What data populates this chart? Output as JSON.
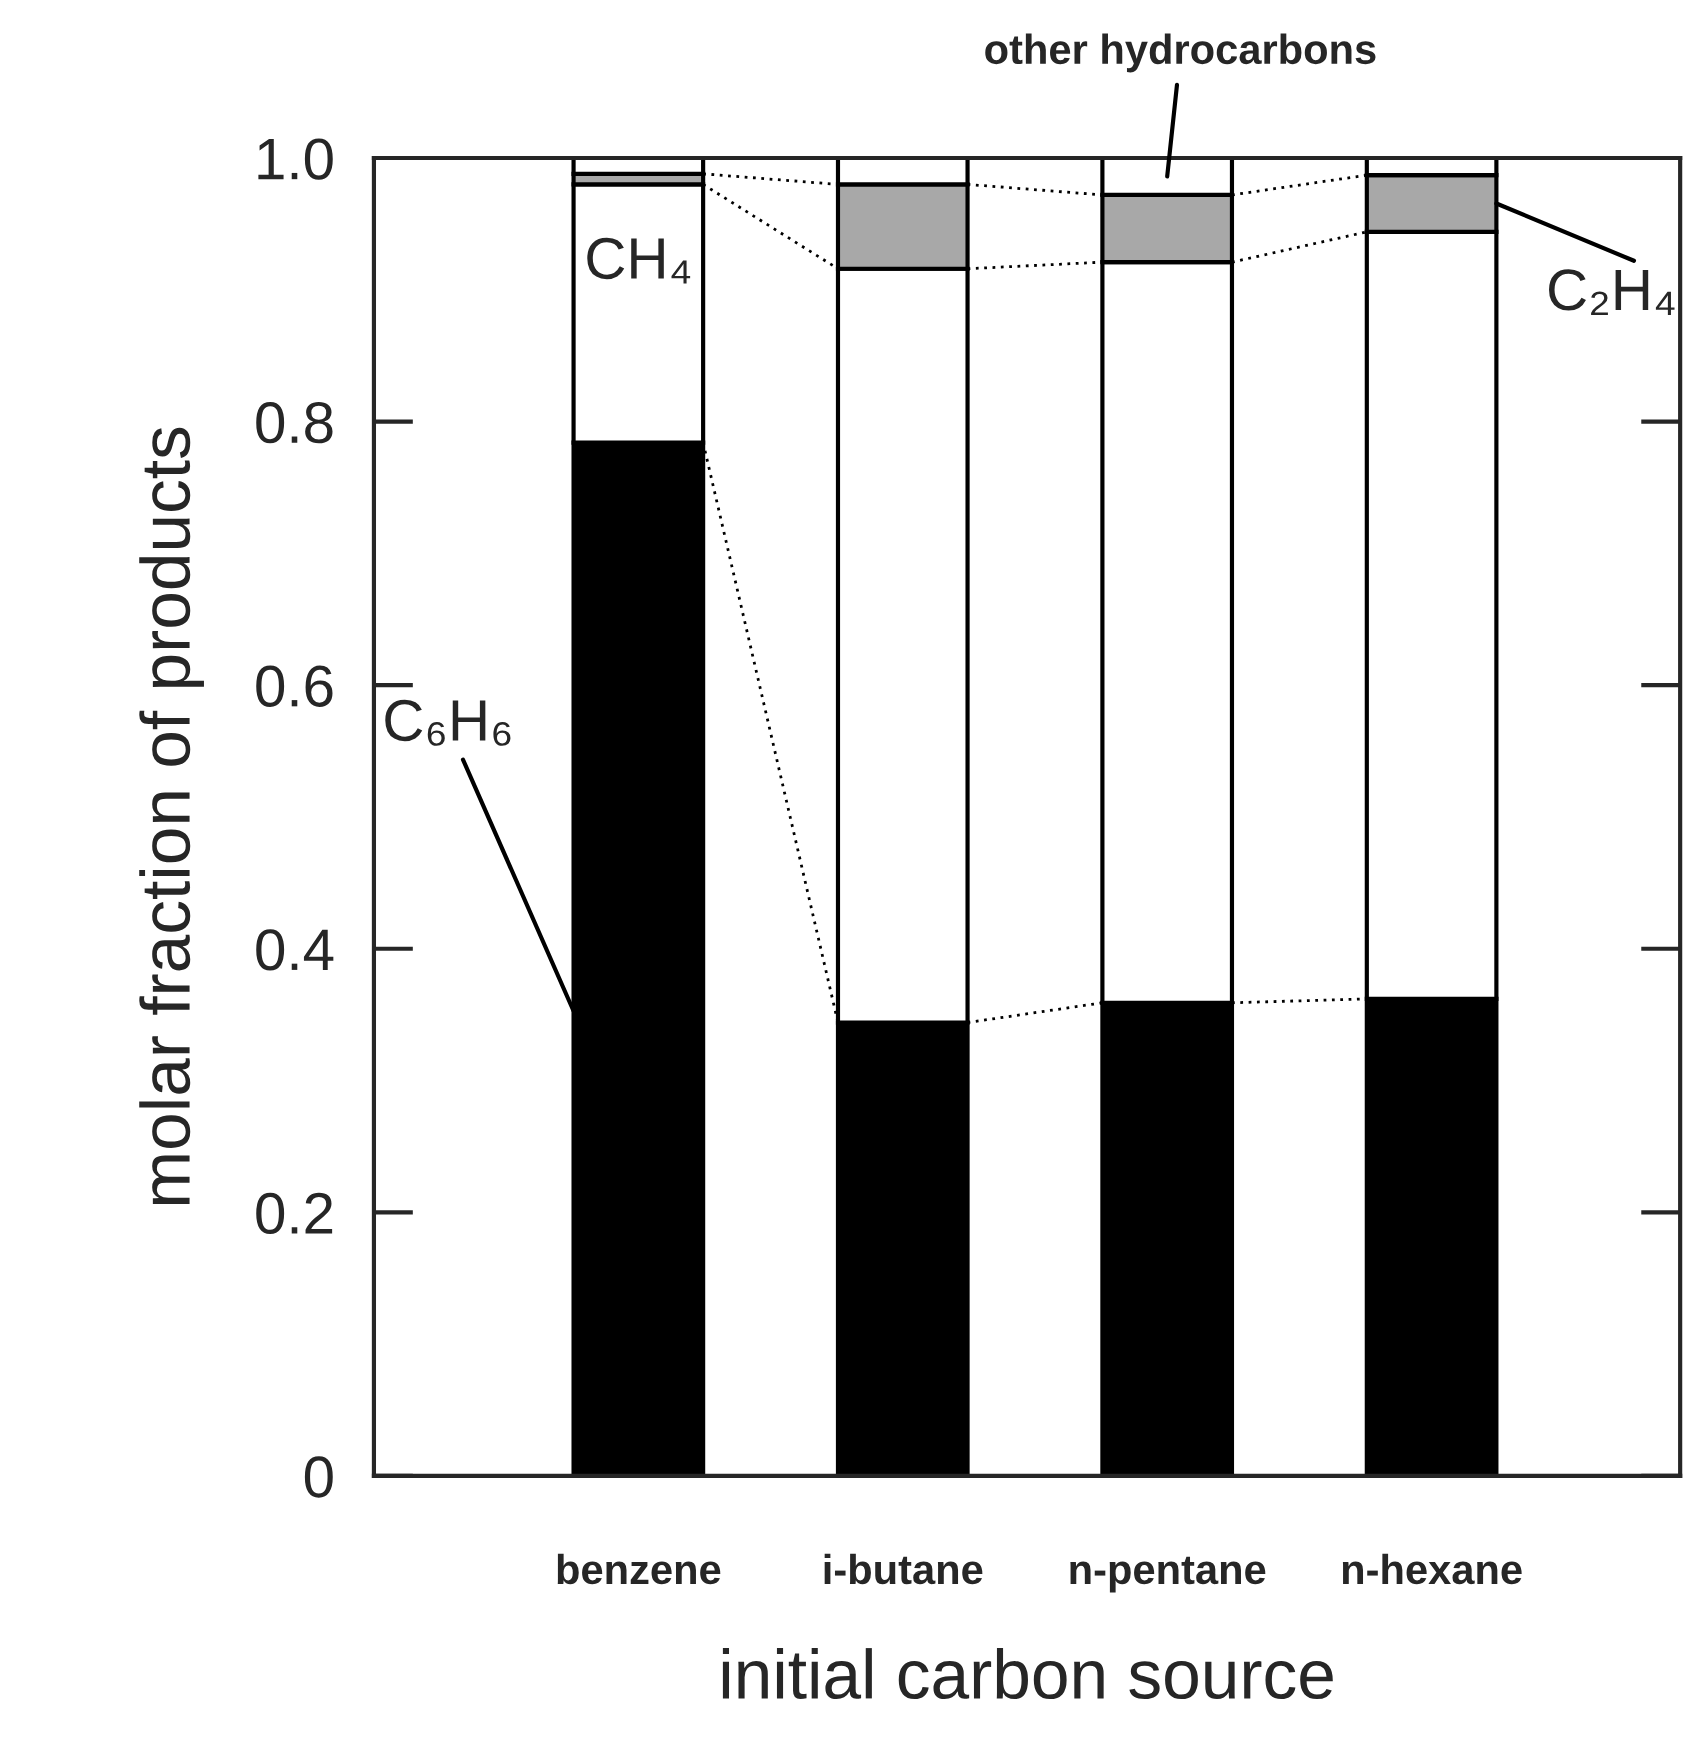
{
  "chart_data": {
    "type": "bar",
    "stacked": true,
    "xlabel": "initial carbon source",
    "ylabel": "molar fraction of products",
    "categories": [
      "benzene",
      "i-butane",
      "n-pentane",
      "n-hexane"
    ],
    "series": [
      {
        "name": "C₆H₆",
        "color": "#000000",
        "values": [
          0.784,
          0.344,
          0.359,
          0.362
        ]
      },
      {
        "name": "CH₄",
        "color": "#ffffff",
        "values": [
          0.196,
          0.572,
          0.562,
          0.582
        ]
      },
      {
        "name": "C₂H₄",
        "color": "#a8a8a8",
        "values": [
          0.008,
          0.064,
          0.051,
          0.043
        ]
      },
      {
        "name": "other hydrocarbons",
        "color": "#ffffff",
        "values": [
          0.012,
          0.02,
          0.028,
          0.013
        ]
      }
    ],
    "ylim": [
      0,
      1.0
    ],
    "yticks": [
      0,
      0.2,
      0.4,
      0.6,
      0.8,
      {
        "value": 1.0,
        "label": "1.0"
      }
    ],
    "grid": false
  }
}
